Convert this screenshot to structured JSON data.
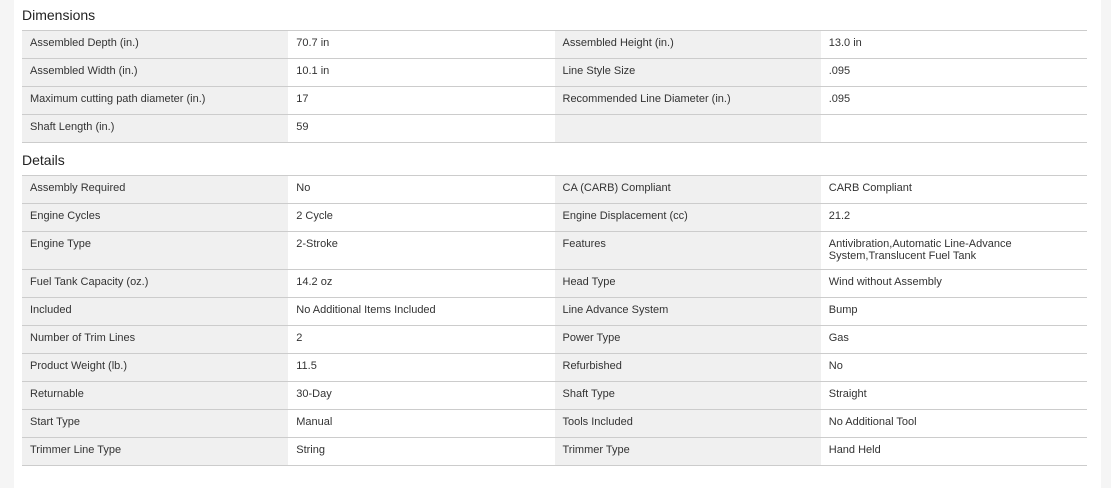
{
  "sections": [
    {
      "title": "Dimensions",
      "rows": [
        [
          [
            "Assembled Depth (in.)",
            "70.7 in"
          ],
          [
            "Assembled Height (in.)",
            "13.0 in"
          ]
        ],
        [
          [
            "Assembled Width (in.)",
            "10.1 in"
          ],
          [
            "Line Style Size",
            ".095"
          ]
        ],
        [
          [
            "Maximum cutting path diameter (in.)",
            "17"
          ],
          [
            "Recommended Line Diameter (in.)",
            ".095"
          ]
        ],
        [
          [
            "Shaft Length (in.)",
            "59"
          ],
          [
            "",
            ""
          ]
        ]
      ]
    },
    {
      "title": "Details",
      "rows": [
        [
          [
            "Assembly Required",
            "No"
          ],
          [
            "CA (CARB) Compliant",
            "CARB Compliant"
          ]
        ],
        [
          [
            "Engine Cycles",
            "2 Cycle"
          ],
          [
            "Engine Displacement (cc)",
            "21.2"
          ]
        ],
        [
          [
            "Engine Type",
            "2-Stroke"
          ],
          [
            "Features",
            "Antivibration,Automatic Line-Advance System,Translucent Fuel Tank"
          ]
        ],
        [
          [
            "Fuel Tank Capacity (oz.)",
            "14.2 oz"
          ],
          [
            "Head Type",
            "Wind without Assembly"
          ]
        ],
        [
          [
            "Included",
            "No Additional Items Included"
          ],
          [
            "Line Advance System",
            "Bump"
          ]
        ],
        [
          [
            "Number of Trim Lines",
            "2"
          ],
          [
            "Power Type",
            "Gas"
          ]
        ],
        [
          [
            "Product Weight (lb.)",
            "11.5"
          ],
          [
            "Refurbished",
            "No"
          ]
        ],
        [
          [
            "Returnable",
            "30-Day"
          ],
          [
            "Shaft Type",
            "Straight"
          ]
        ],
        [
          [
            "Start Type",
            "Manual"
          ],
          [
            "Tools Included",
            "No Additional Tool"
          ]
        ],
        [
          [
            "Trimmer Line Type",
            "String"
          ],
          [
            "Trimmer Type",
            "Hand Held"
          ]
        ]
      ]
    }
  ]
}
